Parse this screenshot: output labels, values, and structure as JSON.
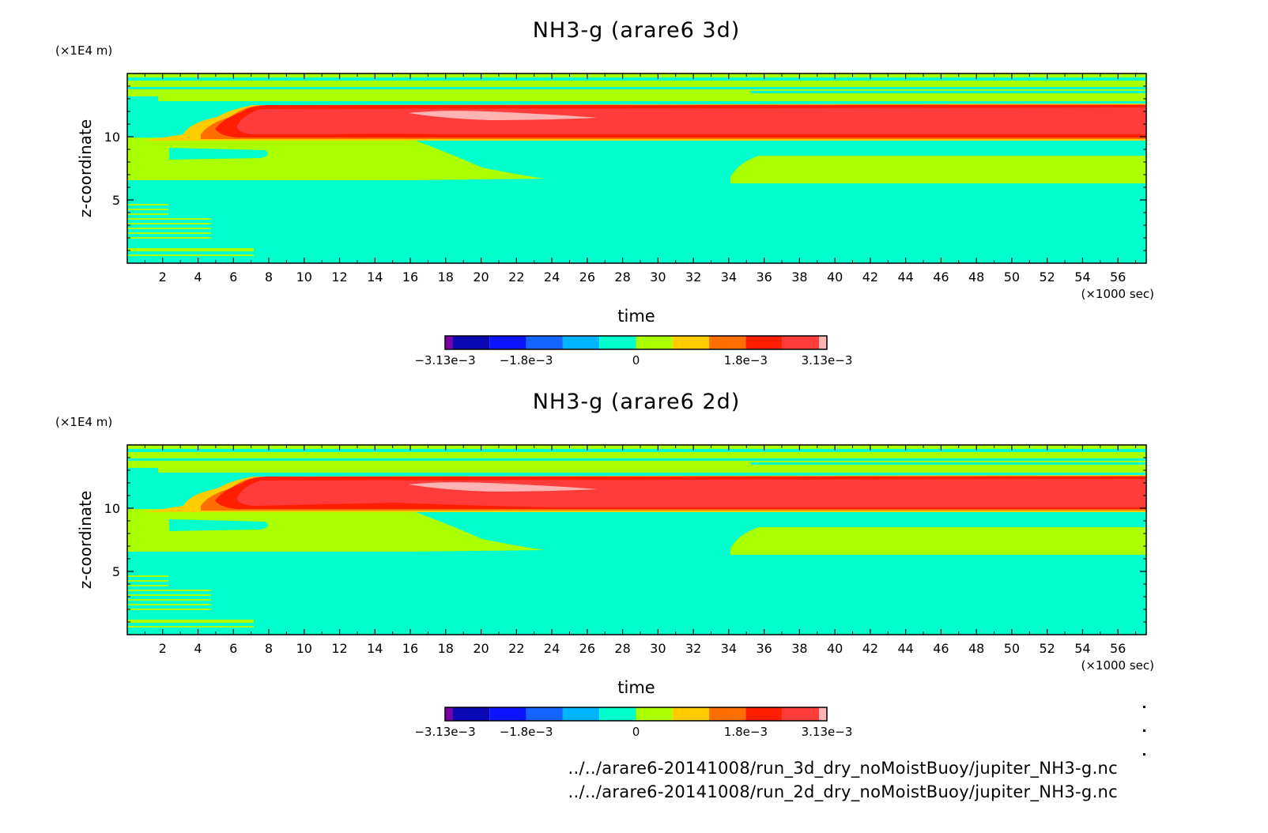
{
  "chart_data": [
    {
      "type": "heatmap",
      "title": "NH3-g (arare6 3d)",
      "xlabel": "time",
      "ylabel": "z-coordinate",
      "x_unit": "(×1000 sec)",
      "y_unit": "(×1E4 m)",
      "xlim": [
        0,
        57.6
      ],
      "ylim": [
        0,
        15
      ],
      "x_ticks": [
        2,
        4,
        6,
        8,
        10,
        12,
        14,
        16,
        18,
        20,
        22,
        24,
        26,
        28,
        30,
        32,
        34,
        36,
        38,
        40,
        42,
        44,
        46,
        48,
        50,
        52,
        54,
        56
      ],
      "y_ticks": [
        5,
        10
      ],
      "colorbar": {
        "range": [
          -0.00313,
          0.00313
        ],
        "levels": 11,
        "colors": [
          "#7a00aa",
          "#0a0ab4",
          "#0a14ff",
          "#1464ff",
          "#00b4ff",
          "#00ffcc",
          "#aaff00",
          "#ffcc00",
          "#ff6e00",
          "#ff1e00",
          "#ff3c3c",
          "#ffb4b4"
        ],
        "tick_labels": [
          "−3.13e−3",
          "−1.8e−3",
          "0",
          "1.8e−3",
          "3.13e−3"
        ]
      }
    },
    {
      "type": "heatmap",
      "title": "NH3-g (arare6 2d)",
      "xlabel": "time",
      "ylabel": "z-coordinate",
      "x_unit": "(×1000 sec)",
      "y_unit": "(×1E4 m)",
      "xlim": [
        0,
        57.6
      ],
      "ylim": [
        0,
        15
      ],
      "x_ticks": [
        2,
        4,
        6,
        8,
        10,
        12,
        14,
        16,
        18,
        20,
        22,
        24,
        26,
        28,
        30,
        32,
        34,
        36,
        38,
        40,
        42,
        44,
        46,
        48,
        50,
        52,
        54,
        56
      ],
      "y_ticks": [
        5,
        10
      ],
      "colorbar": {
        "range": [
          -0.00313,
          0.00313
        ],
        "levels": 11,
        "colors": [
          "#7a00aa",
          "#0a0ab4",
          "#0a14ff",
          "#1464ff",
          "#00b4ff",
          "#00ffcc",
          "#aaff00",
          "#ffcc00",
          "#ff6e00",
          "#ff1e00",
          "#ff3c3c",
          "#ffb4b4"
        ],
        "tick_labels": [
          "−3.13e−3",
          "−1.8e−3",
          "0",
          "1.8e−3",
          "3.13e−3"
        ]
      }
    }
  ],
  "files": [
    "../../arare6-20141008/run_3d_dry_noMoistBuoy/jupiter_NH3-g.nc",
    "../../arare6-20141008/run_2d_dry_noMoistBuoy/jupiter_NH3-g.nc"
  ],
  "colors": {
    "cyan": "#00ffcc",
    "green": "#aaff00",
    "yellow": "#ffcc00",
    "orange": "#ff6e00",
    "red": "#ff1e00",
    "redlight": "#ff3c3c",
    "pink": "#ffb4b4"
  }
}
